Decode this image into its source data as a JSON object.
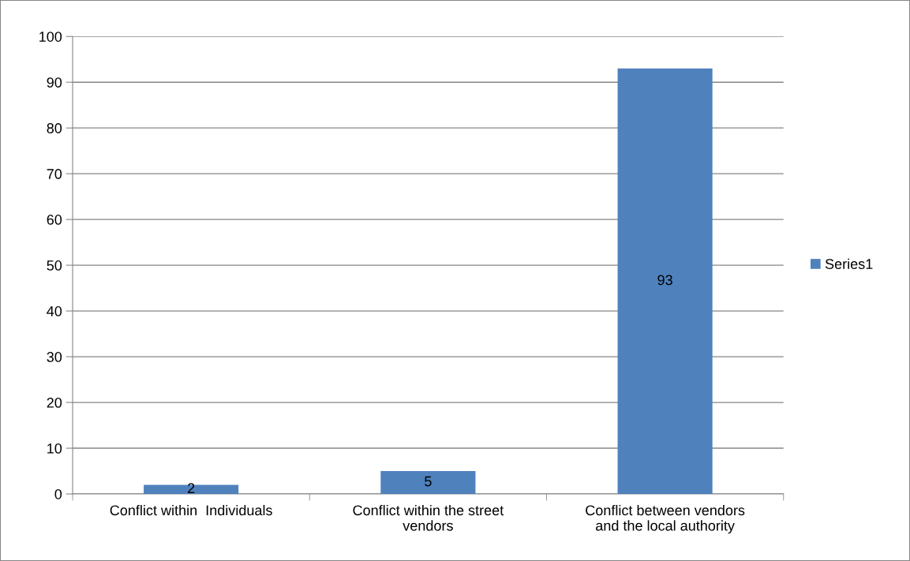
{
  "chart_data": {
    "type": "bar",
    "categories": [
      "Conflict within  Individuals",
      "Conflict within the street\nvendors",
      "Conflict between vendors\nand the local authority"
    ],
    "series": [
      {
        "name": "Series1",
        "color": "#4f81bd",
        "values": [
          2,
          5,
          93
        ]
      }
    ],
    "ylim": [
      0,
      100
    ],
    "yticks": [
      0,
      10,
      20,
      30,
      40,
      50,
      60,
      70,
      80,
      90,
      100
    ],
    "grid": "y",
    "legend": "right",
    "data_labels": true
  }
}
